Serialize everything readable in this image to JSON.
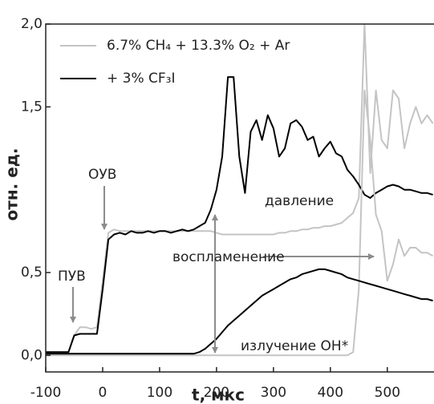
{
  "chart_data": {
    "type": "line",
    "xlabel": "t, мкс",
    "ylabel": "отн. ед.",
    "x": [
      -100,
      -90,
      -80,
      -70,
      -60,
      -50,
      -40,
      -30,
      -20,
      -10,
      0,
      10,
      20,
      30,
      40,
      50,
      60,
      70,
      80,
      90,
      100,
      110,
      120,
      130,
      140,
      150,
      160,
      170,
      180,
      190,
      200,
      210,
      220,
      230,
      240,
      250,
      260,
      270,
      280,
      290,
      300,
      310,
      320,
      330,
      340,
      350,
      360,
      370,
      380,
      390,
      400,
      410,
      420,
      430,
      440,
      450,
      460,
      470,
      480,
      490,
      500,
      510,
      520,
      530,
      540,
      550,
      560,
      570,
      580
    ],
    "series": [
      {
        "name": "6.7% CH₄ + 13.3% O₂ + Ar",
        "color": "#c4c4c4",
        "values": [
          0.02,
          0.02,
          0.02,
          0.02,
          0.02,
          0.12,
          0.17,
          0.17,
          0.16,
          0.17,
          0.45,
          0.74,
          0.76,
          0.75,
          0.75,
          0.75,
          0.75,
          0.75,
          0.75,
          0.75,
          0.75,
          0.75,
          0.75,
          0.75,
          0.75,
          0.75,
          0.75,
          0.75,
          0.75,
          0.75,
          0.74,
          0.73,
          0.73,
          0.73,
          0.73,
          0.73,
          0.73,
          0.73,
          0.73,
          0.73,
          0.73,
          0.74,
          0.74,
          0.75,
          0.75,
          0.76,
          0.76,
          0.77,
          0.77,
          0.78,
          0.78,
          0.79,
          0.8,
          0.83,
          0.86,
          0.95,
          2.0,
          1.1,
          1.6,
          1.3,
          1.25,
          1.6,
          1.55,
          1.25,
          1.4,
          1.5,
          1.4,
          1.45,
          1.4
        ]
      },
      {
        "name": "+ 3% CF₃I",
        "color": "#000000",
        "values": [
          0.02,
          0.02,
          0.02,
          0.02,
          0.02,
          0.12,
          0.13,
          0.13,
          0.13,
          0.13,
          0.4,
          0.7,
          0.73,
          0.74,
          0.73,
          0.75,
          0.74,
          0.74,
          0.75,
          0.74,
          0.75,
          0.75,
          0.74,
          0.75,
          0.76,
          0.75,
          0.76,
          0.78,
          0.8,
          0.88,
          1.0,
          1.2,
          1.68,
          1.68,
          1.2,
          0.98,
          1.35,
          1.42,
          1.3,
          1.45,
          1.37,
          1.2,
          1.25,
          1.4,
          1.42,
          1.38,
          1.3,
          1.32,
          1.2,
          1.25,
          1.29,
          1.22,
          1.2,
          1.12,
          1.08,
          1.03,
          0.97,
          0.95,
          0.98,
          1.0,
          1.02,
          1.03,
          1.02,
          1.0,
          1.0,
          0.99,
          0.98,
          0.98,
          0.97
        ]
      },
      {
        "color": "#c4c4c4",
        "values": [
          0,
          0,
          0,
          0,
          0,
          0,
          0,
          0,
          0,
          0,
          0,
          0,
          0,
          0,
          0,
          0,
          0,
          0,
          0,
          0,
          0,
          0,
          0,
          0,
          0,
          0,
          0,
          0,
          0,
          0,
          0,
          0,
          0,
          0,
          0,
          0,
          0,
          0,
          0,
          0,
          0,
          0,
          0,
          0,
          0,
          0,
          0,
          0,
          0,
          0,
          0,
          0,
          0,
          0,
          0.02,
          0.4,
          1.6,
          1.3,
          0.85,
          0.75,
          0.45,
          0.55,
          0.7,
          0.6,
          0.65,
          0.65,
          0.62,
          0.62,
          0.6
        ]
      },
      {
        "color": "#000000",
        "values": [
          0.01,
          0.01,
          0.01,
          0.01,
          0.01,
          0.01,
          0.01,
          0.01,
          0.01,
          0.01,
          0.01,
          0.01,
          0.01,
          0.01,
          0.01,
          0.01,
          0.01,
          0.01,
          0.01,
          0.01,
          0.01,
          0.01,
          0.01,
          0.01,
          0.01,
          0.01,
          0.01,
          0.02,
          0.04,
          0.07,
          0.1,
          0.14,
          0.18,
          0.21,
          0.24,
          0.27,
          0.3,
          0.33,
          0.36,
          0.38,
          0.4,
          0.42,
          0.44,
          0.46,
          0.47,
          0.49,
          0.5,
          0.51,
          0.52,
          0.52,
          0.51,
          0.5,
          0.49,
          0.47,
          0.46,
          0.45,
          0.44,
          0.43,
          0.42,
          0.41,
          0.4,
          0.39,
          0.38,
          0.37,
          0.36,
          0.35,
          0.34,
          0.34,
          0.33
        ]
      }
    ],
    "xlim": [
      -100,
      582
    ],
    "xticks": [
      -100,
      0,
      100,
      200,
      300,
      400,
      500
    ],
    "ylim": [
      -0.1,
      2.0
    ],
    "yticks": [
      {
        "value": 0,
        "label": "0,0"
      },
      {
        "value": 0.5,
        "label": "0,5"
      },
      {
        "value": 1.5,
        "label": "1,5"
      },
      {
        "value": 2.0,
        "label": "2,0"
      }
    ],
    "annotations": [
      "ПУВ",
      "ОУВ",
      "давление",
      "воспламенение",
      "излучение OH*"
    ]
  }
}
